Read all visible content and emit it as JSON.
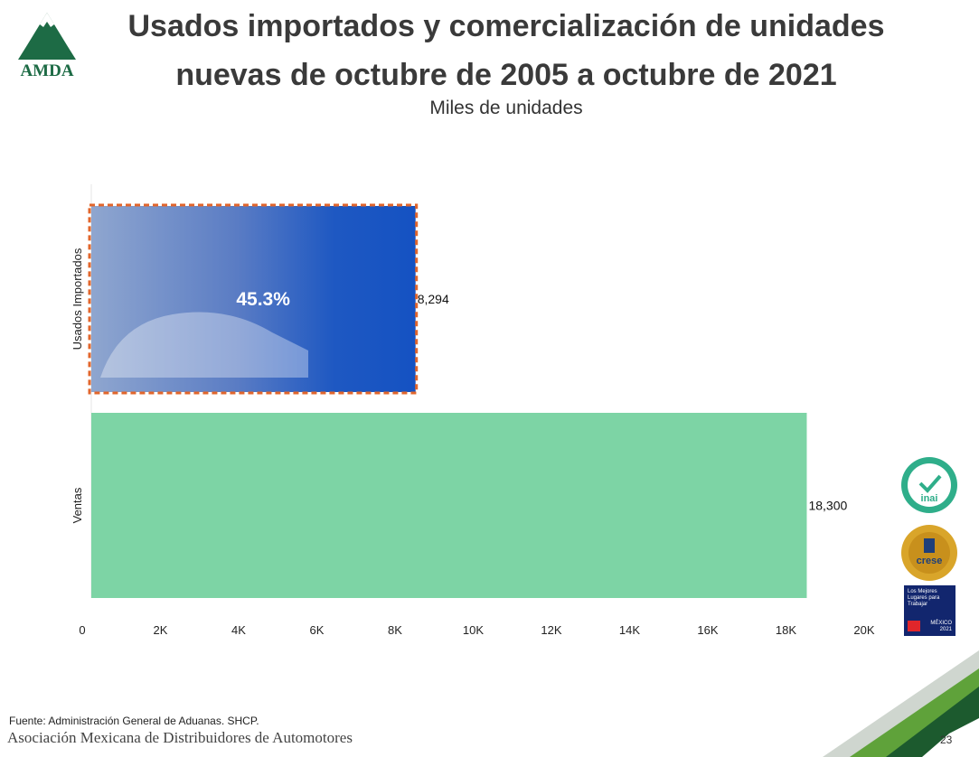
{
  "header": {
    "title_line1": "Usados importados y comercialización de unidades",
    "title_line2": "nuevas de octubre de 2005 a octubre de 2021",
    "subtitle": "Miles de unidades",
    "logo_text": "AMDA"
  },
  "chart_data": {
    "type": "bar",
    "orientation": "horizontal",
    "title": "Usados importados y comercialización de unidades nuevas de octubre de 2005 a octubre de 2021",
    "subtitle": "Miles de unidades",
    "categories": [
      "Usados Importados",
      "Ventas"
    ],
    "values": [
      8294,
      18300
    ],
    "value_labels": [
      "8,294",
      "18,300"
    ],
    "colors": [
      "#1552c2",
      "#7dd4a5"
    ],
    "highlight_color": "#e2662c",
    "annotation": "45.3%",
    "xlim": [
      0,
      20000
    ],
    "x_ticks": [
      0,
      2000,
      4000,
      6000,
      8000,
      10000,
      12000,
      14000,
      16000,
      18000,
      20000
    ],
    "x_tick_labels": [
      "0",
      "2K",
      "4K",
      "6K",
      "8K",
      "10K",
      "12K",
      "14K",
      "16K",
      "18K",
      "20K"
    ],
    "grid": false,
    "legend": "none"
  },
  "footer": {
    "source": "Fuente: Administración General de Aduanas. SHCP.",
    "organization": "Asociación Mexicana de Distribuidores de Automotores",
    "page_number": "23"
  },
  "badges": {
    "inai_text": "inai",
    "crese_text": "crese",
    "gptw_line1": "Los Mejores",
    "gptw_line2": "Lugares para",
    "gptw_line3": "Trabajar",
    "gptw_country": "MÉXICO",
    "gptw_year": "2021"
  }
}
